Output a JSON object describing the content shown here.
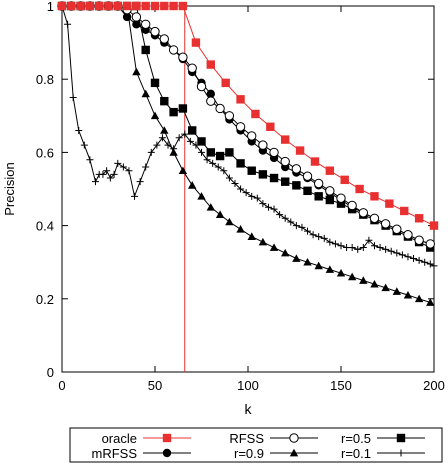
{
  "chart_data": {
    "type": "line",
    "title": "",
    "xlabel": "k",
    "ylabel": "Precision",
    "xlim": [
      0,
      200
    ],
    "ylim": [
      0,
      1
    ],
    "xticks": [
      0,
      50,
      100,
      150,
      200
    ],
    "yticks": [
      0,
      0.2,
      0.4,
      0.6,
      0.8,
      1
    ],
    "xtick_labels": [
      "0",
      "50",
      "100",
      "150",
      "200"
    ],
    "ytick_labels": [
      "0",
      "0.2",
      "0.4",
      "0.6",
      "0.8",
      "1"
    ],
    "grid": false,
    "legend_position": "bottom",
    "vertical_line": {
      "x": 66,
      "color": "#e03030"
    },
    "series": [
      {
        "name": "oracle",
        "color": "#e83030",
        "marker": "square-filled",
        "x": [
          0,
          5,
          10,
          15,
          20,
          25,
          30,
          35,
          40,
          45,
          50,
          55,
          60,
          65,
          72,
          80,
          88,
          96,
          104,
          112,
          120,
          128,
          136,
          144,
          152,
          160,
          168,
          176,
          184,
          192,
          200
        ],
        "y": [
          1,
          1,
          1,
          1,
          1,
          1,
          1,
          1,
          1,
          1,
          1,
          1,
          1,
          1,
          0.9,
          0.84,
          0.79,
          0.745,
          0.705,
          0.67,
          0.635,
          0.605,
          0.575,
          0.55,
          0.525,
          0.5,
          0.48,
          0.46,
          0.44,
          0.42,
          0.4
        ]
      },
      {
        "name": "RFSS",
        "color": "#000000",
        "marker": "circle-open",
        "x": [
          0,
          5,
          10,
          15,
          20,
          25,
          30,
          35,
          40,
          45,
          50,
          55,
          60,
          65,
          70,
          75,
          80,
          85,
          90,
          96,
          102,
          108,
          114,
          120,
          126,
          132,
          138,
          144,
          150,
          156,
          162,
          168,
          174,
          180,
          186,
          192,
          198
        ],
        "y": [
          1,
          1,
          1,
          1,
          1,
          1,
          1,
          0.99,
          0.97,
          0.95,
          0.93,
          0.91,
          0.88,
          0.86,
          0.83,
          0.78,
          0.74,
          0.72,
          0.7,
          0.67,
          0.645,
          0.62,
          0.6,
          0.575,
          0.555,
          0.535,
          0.515,
          0.495,
          0.475,
          0.455,
          0.435,
          0.42,
          0.405,
          0.39,
          0.375,
          0.36,
          0.35
        ]
      },
      {
        "name": "r=0.5",
        "color": "#000000",
        "marker": "square-filled",
        "x": [
          0,
          5,
          10,
          15,
          20,
          25,
          30,
          35,
          40,
          45,
          50,
          55,
          60,
          65,
          70,
          75,
          80,
          85,
          90,
          96,
          102,
          108,
          114,
          120,
          126,
          132,
          138,
          144,
          150,
          156,
          162,
          168,
          174,
          180,
          186,
          192,
          198
        ],
        "y": [
          1,
          1,
          1,
          1,
          1,
          1,
          1,
          1,
          1,
          0.88,
          0.79,
          0.74,
          0.71,
          0.72,
          0.66,
          0.63,
          0.6,
          0.59,
          0.6,
          0.57,
          0.55,
          0.54,
          0.53,
          0.52,
          0.51,
          0.495,
          0.48,
          0.47,
          0.46,
          0.445,
          0.43,
          0.415,
          0.4,
          0.385,
          0.37,
          0.355,
          0.34
        ]
      },
      {
        "name": "mRFSS",
        "color": "#000000",
        "marker": "circle-filled",
        "x": [
          0,
          5,
          10,
          15,
          20,
          25,
          30,
          35,
          40,
          45,
          50,
          55,
          60,
          65,
          70,
          75,
          80,
          85,
          90,
          96,
          102,
          108,
          114,
          120,
          126,
          132,
          138,
          144,
          150,
          156,
          162,
          168,
          174,
          180,
          186,
          192,
          198
        ],
        "y": [
          1,
          1,
          1,
          1,
          1,
          1,
          1,
          0.97,
          0.95,
          0.935,
          0.92,
          0.9,
          0.88,
          0.855,
          0.82,
          0.79,
          0.76,
          0.72,
          0.69,
          0.66,
          0.63,
          0.605,
          0.585,
          0.56,
          0.545,
          0.53,
          0.51,
          0.49,
          0.47,
          0.45,
          0.435,
          0.42,
          0.405,
          0.39,
          0.375,
          0.36,
          0.35
        ]
      },
      {
        "name": "r=0.9",
        "color": "#000000",
        "marker": "triangle-filled",
        "x": [
          0,
          5,
          10,
          15,
          20,
          25,
          30,
          35,
          40,
          45,
          50,
          55,
          60,
          65,
          70,
          75,
          80,
          85,
          90,
          96,
          102,
          108,
          114,
          120,
          126,
          132,
          138,
          144,
          150,
          156,
          162,
          168,
          174,
          180,
          186,
          192,
          198
        ],
        "y": [
          1,
          1,
          1,
          1,
          1,
          1,
          1,
          1,
          0.82,
          0.76,
          0.7,
          0.66,
          0.6,
          0.55,
          0.51,
          0.48,
          0.45,
          0.43,
          0.41,
          0.39,
          0.37,
          0.355,
          0.34,
          0.325,
          0.31,
          0.3,
          0.29,
          0.28,
          0.27,
          0.26,
          0.25,
          0.24,
          0.23,
          0.22,
          0.21,
          0.2,
          0.19
        ]
      },
      {
        "name": "r=0.1",
        "color": "#000000",
        "marker": "plus",
        "x": [
          0,
          3,
          6,
          9,
          12,
          15,
          18,
          20,
          22,
          24,
          26,
          28,
          30,
          33,
          36,
          39,
          42,
          45,
          48,
          51,
          54,
          57,
          60,
          63,
          66,
          69,
          72,
          75,
          78,
          81,
          84,
          87,
          90,
          93,
          96,
          99,
          102,
          105,
          108,
          111,
          114,
          117,
          120,
          123,
          126,
          129,
          132,
          135,
          138,
          141,
          144,
          147,
          150,
          153,
          156,
          159,
          162,
          165,
          168,
          171,
          174,
          177,
          180,
          183,
          186,
          189,
          192,
          195,
          198,
          200
        ],
        "y": [
          1,
          0.95,
          0.75,
          0.66,
          0.62,
          0.58,
          0.52,
          0.54,
          0.54,
          0.55,
          0.53,
          0.54,
          0.57,
          0.56,
          0.55,
          0.48,
          0.52,
          0.56,
          0.6,
          0.62,
          0.64,
          0.62,
          0.61,
          0.64,
          0.65,
          0.63,
          0.62,
          0.6,
          0.58,
          0.57,
          0.56,
          0.55,
          0.53,
          0.515,
          0.5,
          0.49,
          0.48,
          0.475,
          0.46,
          0.45,
          0.445,
          0.43,
          0.42,
          0.41,
          0.4,
          0.395,
          0.385,
          0.375,
          0.37,
          0.365,
          0.355,
          0.35,
          0.345,
          0.34,
          0.34,
          0.335,
          0.34,
          0.36,
          0.345,
          0.34,
          0.335,
          0.33,
          0.325,
          0.32,
          0.315,
          0.31,
          0.305,
          0.3,
          0.295,
          0.29
        ]
      }
    ],
    "legend": [
      {
        "name": "oracle",
        "color": "#e83030",
        "marker": "square-filled"
      },
      {
        "name": "RFSS",
        "color": "#000000",
        "marker": "circle-open"
      },
      {
        "name": "r=0.5",
        "color": "#000000",
        "marker": "square-filled"
      },
      {
        "name": "mRFSS",
        "color": "#000000",
        "marker": "circle-filled"
      },
      {
        "name": "r=0.9",
        "color": "#000000",
        "marker": "triangle-filled"
      },
      {
        "name": "r=0.1",
        "color": "#000000",
        "marker": "plus"
      }
    ]
  }
}
